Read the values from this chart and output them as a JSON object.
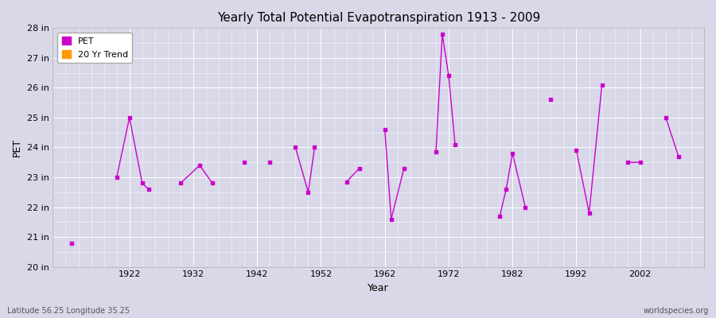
{
  "title": "Yearly Total Potential Evapotranspiration 1913 - 2009",
  "xlabel": "Year",
  "ylabel": "PET",
  "subtitle_lat": "Latitude 56.25 Longitude 35.25",
  "watermark": "worldspecies.org",
  "ylim": [
    20,
    28
  ],
  "ytick_labels": [
    "20 in",
    "21 in",
    "22 in",
    "23 in",
    "24 in",
    "25 in",
    "26 in",
    "27 in",
    "28 in"
  ],
  "ytick_values": [
    20,
    21,
    22,
    23,
    24,
    25,
    26,
    27,
    28
  ],
  "xlim": [
    1910,
    2012
  ],
  "xtick_values": [
    1922,
    1932,
    1942,
    1952,
    1962,
    1972,
    1982,
    1992,
    2002
  ],
  "pet_color": "#cc00cc",
  "trend_color": "#ff9900",
  "fig_bg_color": "#d8d8e8",
  "plot_bg_color": "#d8d8e8",
  "years": [
    1913,
    null,
    null,
    null,
    null,
    null,
    null,
    1920,
    null,
    1922,
    null,
    1924,
    1925,
    null,
    null,
    null,
    null,
    null,
    null,
    null,
    1930,
    null,
    null,
    1933,
    null,
    1935,
    null,
    null,
    null,
    null,
    1940,
    null,
    null,
    null,
    null,
    null,
    null,
    null,
    null,
    1944,
    null,
    null,
    null,
    null,
    null,
    null,
    null,
    null,
    1948,
    null,
    null,
    null,
    null,
    null,
    null,
    1950,
    1951,
    null,
    null,
    null,
    null,
    null,
    null,
    null,
    null,
    1956,
    null,
    null,
    null,
    null,
    1958,
    null,
    null,
    null,
    null,
    null,
    null,
    null,
    null,
    1962,
    1963,
    null,
    null,
    null,
    1965,
    null,
    null,
    null,
    null,
    null,
    null,
    null,
    null,
    null,
    1970,
    1971,
    1972,
    1973,
    null,
    null,
    null,
    null,
    null,
    null,
    null,
    null,
    null,
    null,
    null,
    null,
    null,
    null,
    null,
    null,
    null,
    null,
    null,
    null,
    null,
    null,
    1980,
    1981,
    1982,
    null,
    null,
    null,
    1984,
    null,
    null,
    null,
    null,
    null,
    null,
    null,
    null,
    null,
    null,
    null,
    null,
    null,
    null,
    null,
    null,
    null,
    null,
    null,
    null,
    1988,
    null,
    null,
    null,
    null,
    null,
    null,
    null,
    null,
    null,
    null,
    null,
    null,
    1992,
    null,
    null,
    null,
    null,
    null,
    null,
    null,
    1994,
    null,
    null,
    null,
    null,
    null,
    null,
    null,
    null,
    null,
    null,
    null,
    null,
    1996,
    null,
    null,
    null,
    null,
    null,
    null,
    null,
    null,
    null,
    null,
    null,
    null,
    null,
    null,
    null,
    null,
    null,
    null,
    null,
    null,
    2000,
    null,
    null,
    null,
    2002,
    null,
    null,
    null,
    null,
    null,
    null,
    null,
    null,
    null,
    null,
    null,
    null,
    null,
    null,
    null,
    null,
    2006,
    null,
    null,
    2008
  ],
  "pet_values": [
    20.8,
    null,
    null,
    null,
    null,
    null,
    null,
    23.0,
    null,
    25.0,
    null,
    22.8,
    22.6,
    null,
    null,
    null,
    null,
    null,
    null,
    null,
    22.8,
    null,
    null,
    23.4,
    null,
    22.8,
    null,
    null,
    null,
    null,
    23.5,
    null,
    null,
    null,
    null,
    null,
    null,
    null,
    null,
    23.5,
    null,
    null,
    null,
    null,
    null,
    null,
    null,
    null,
    24.0,
    null,
    null,
    null,
    null,
    null,
    null,
    22.5,
    24.0,
    null,
    null,
    null,
    null,
    null,
    null,
    null,
    null,
    22.85,
    null,
    null,
    null,
    null,
    23.3,
    null,
    null,
    null,
    null,
    null,
    null,
    null,
    null,
    24.6,
    21.6,
    null,
    null,
    null,
    23.3,
    null,
    null,
    null,
    null,
    null,
    null,
    null,
    null,
    null,
    23.85,
    27.8,
    26.4,
    24.1,
    null,
    null,
    null,
    null,
    null,
    null,
    null,
    null,
    null,
    null,
    null,
    null,
    null,
    null,
    null,
    null,
    null,
    null,
    null,
    null,
    null,
    null,
    21.7,
    22.6,
    23.8,
    null,
    null,
    null,
    22.0,
    null,
    null,
    null,
    null,
    null,
    null,
    null,
    null,
    null,
    null,
    null,
    null,
    null,
    null,
    null,
    null,
    null,
    null,
    null,
    null,
    25.6,
    null,
    null,
    null,
    null,
    null,
    null,
    null,
    null,
    null,
    null,
    null,
    null,
    23.9,
    null,
    null,
    null,
    null,
    null,
    null,
    null,
    21.8,
    null,
    null,
    null,
    null,
    null,
    null,
    null,
    null,
    null,
    null,
    null,
    null,
    26.1,
    null,
    null,
    null,
    null,
    null,
    null,
    null,
    null,
    null,
    null,
    null,
    null,
    null,
    null,
    null,
    null,
    null,
    null,
    null,
    null,
    23.5,
    null,
    null,
    null,
    23.5,
    null,
    null,
    null,
    null,
    null,
    null,
    null,
    null,
    null,
    null,
    null,
    null,
    null,
    null,
    null,
    null,
    25.0,
    null,
    null,
    23.7
  ],
  "scatter_years": [
    1913,
    1920,
    1922,
    1924,
    1925,
    1930,
    1933,
    1935,
    1940,
    1944,
    1948,
    1950,
    1951,
    1956,
    1958,
    1962,
    1963,
    1965,
    1970,
    1971,
    1972,
    1973,
    1980,
    1981,
    1982,
    1984,
    1988,
    1992,
    1994,
    1996,
    2000,
    2002,
    2006,
    2008
  ],
  "scatter_values": [
    20.8,
    23.0,
    25.0,
    22.8,
    22.6,
    22.8,
    23.4,
    22.8,
    23.5,
    23.5,
    24.0,
    22.5,
    24.0,
    22.85,
    23.3,
    24.6,
    21.6,
    23.3,
    23.85,
    27.8,
    26.4,
    24.1,
    21.7,
    22.6,
    23.8,
    22.0,
    25.6,
    23.9,
    21.8,
    26.1,
    23.5,
    23.5,
    25.0,
    23.7
  ]
}
